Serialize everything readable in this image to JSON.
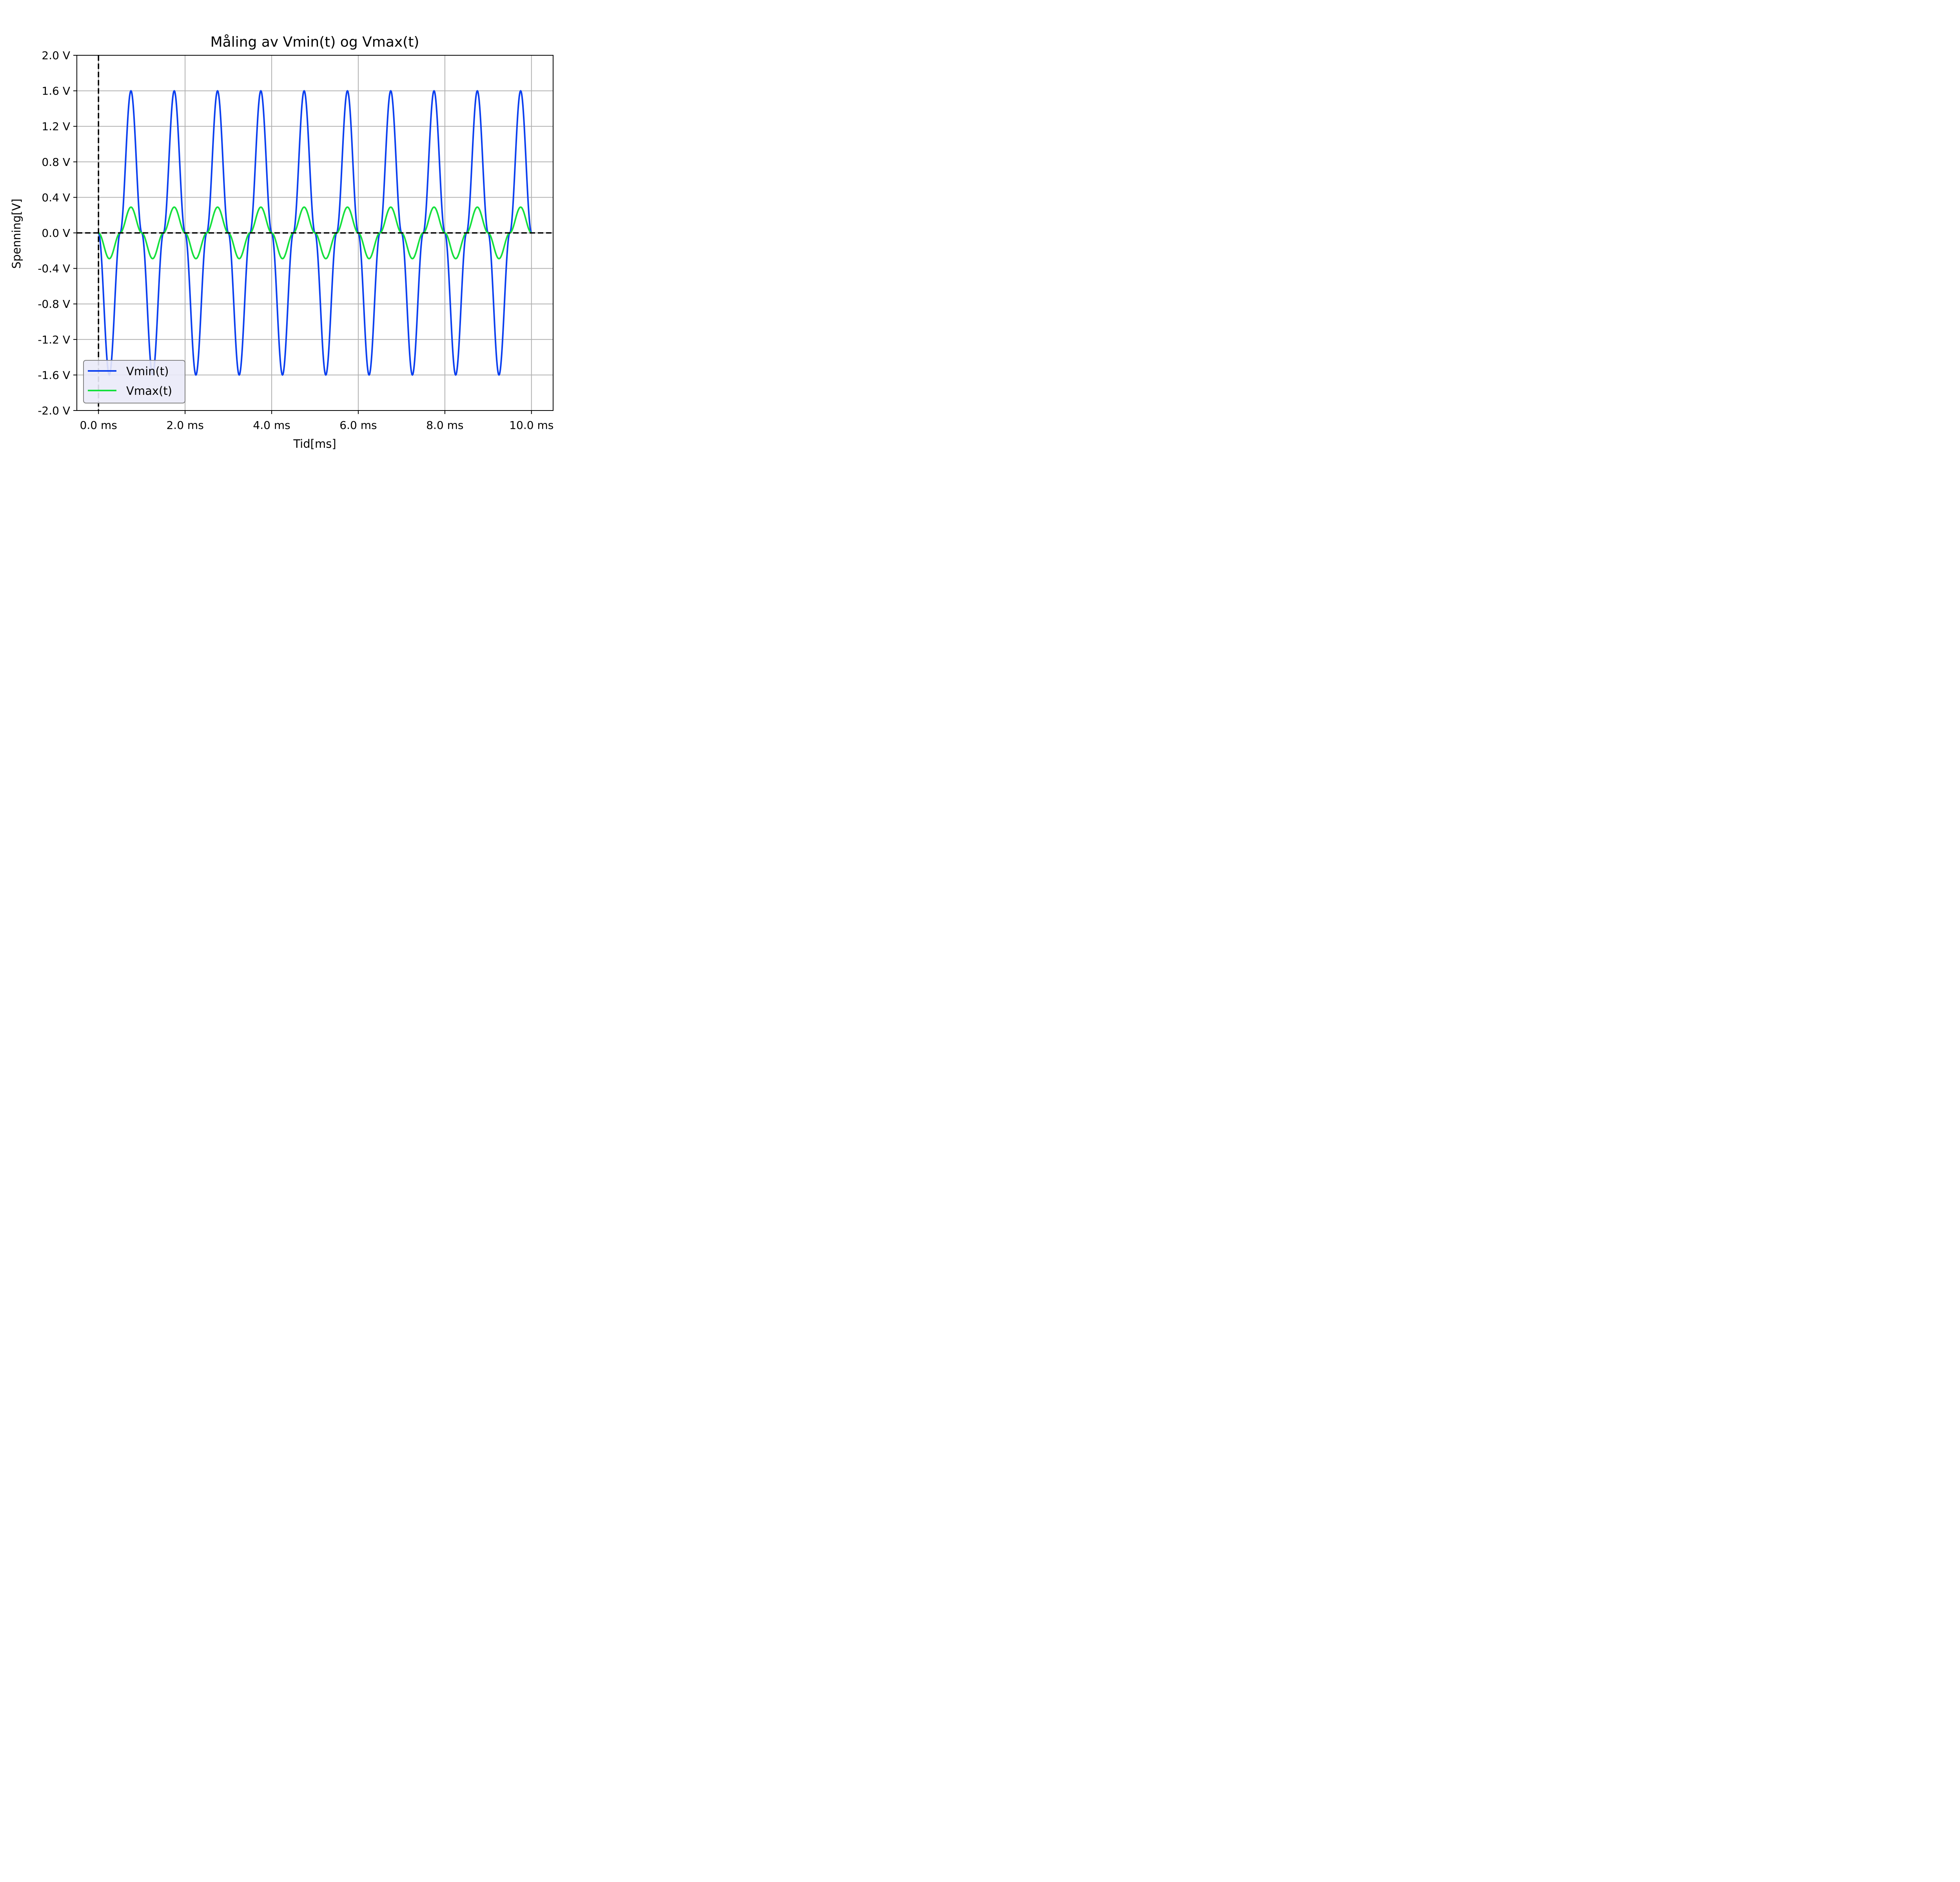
{
  "chart_data": {
    "type": "line",
    "title": "Måling av Vmin(t) og Vmax(t)",
    "xlabel": "Tid[ms]",
    "ylabel": "Spenning[V]",
    "xlim": [
      -0.5,
      10.5
    ],
    "ylim": [
      -2.0,
      2.0
    ],
    "x_ticks": [
      0,
      2,
      4,
      6,
      8,
      10
    ],
    "x_tick_labels": [
      "0.0 ms",
      "2.0 ms",
      "4.0 ms",
      "6.0 ms",
      "8.0 ms",
      "10.0 ms"
    ],
    "y_ticks": [
      2.0,
      1.6,
      1.2,
      0.8,
      0.4,
      0.0,
      -0.4,
      -0.8,
      -1.2,
      -1.6,
      -2.0
    ],
    "y_tick_labels": [
      "2.0 V",
      "1.6 V",
      "1.2 V",
      "0.8 V",
      "0.4 V",
      "0.0 V",
      "-0.4 V",
      "-0.8 V",
      "-1.2 V",
      "-1.6 V",
      "-2.0 V"
    ],
    "grid": true,
    "reference_lines": {
      "vertical_x": 0,
      "horizontal_y": 0,
      "style": "dashed",
      "color": "#000000"
    },
    "legend_position": "lower-left",
    "series": [
      {
        "name": "Vmin(t)",
        "color": "#0a3ff0",
        "x": [
          0,
          0.25,
          0.5,
          0.75,
          1.0,
          1.25,
          1.5,
          1.75,
          2.0,
          2.25,
          2.5,
          2.75,
          3.0,
          3.25,
          3.5,
          3.75,
          4.0,
          4.25,
          4.5,
          4.75,
          5.0,
          5.25,
          5.5,
          5.75,
          6.0,
          6.25,
          6.5,
          6.75,
          7.0,
          7.25,
          7.5,
          7.75,
          8.0,
          8.25,
          8.5,
          8.75,
          9.0,
          9.25,
          9.5,
          9.75,
          10.0
        ],
        "y": [
          0,
          -1.6,
          0,
          1.6,
          0,
          -1.6,
          0,
          1.6,
          0,
          -1.6,
          0,
          1.6,
          0,
          -1.6,
          0,
          1.6,
          0,
          -1.6,
          0,
          1.6,
          0,
          -1.6,
          0,
          1.6,
          0,
          -1.6,
          0,
          1.6,
          0,
          -1.6,
          0,
          1.6,
          0,
          -1.6,
          0,
          1.6,
          0,
          -1.6,
          0,
          1.6,
          0
        ]
      },
      {
        "name": "Vmax(t)",
        "color": "#14e03c",
        "x": [
          0,
          0.25,
          0.5,
          0.75,
          1.0,
          1.25,
          1.5,
          1.75,
          2.0,
          2.25,
          2.5,
          2.75,
          3.0,
          3.25,
          3.5,
          3.75,
          4.0,
          4.25,
          4.5,
          4.75,
          5.0,
          5.25,
          5.5,
          5.75,
          6.0,
          6.25,
          6.5,
          6.75,
          7.0,
          7.25,
          7.5,
          7.75,
          8.0,
          8.25,
          8.5,
          8.75,
          9.0,
          9.25,
          9.5,
          9.75,
          10.0
        ],
        "y": [
          0,
          -0.29,
          0,
          0.29,
          0,
          -0.29,
          0,
          0.29,
          0,
          -0.29,
          0,
          0.29,
          0,
          -0.29,
          0,
          0.29,
          0,
          -0.29,
          0,
          0.29,
          0,
          -0.29,
          0,
          0.29,
          0,
          -0.29,
          0,
          0.29,
          0,
          -0.29,
          0,
          0.29,
          0,
          -0.29,
          0,
          0.29,
          0,
          -0.29,
          0,
          0.29,
          0
        ]
      }
    ]
  }
}
